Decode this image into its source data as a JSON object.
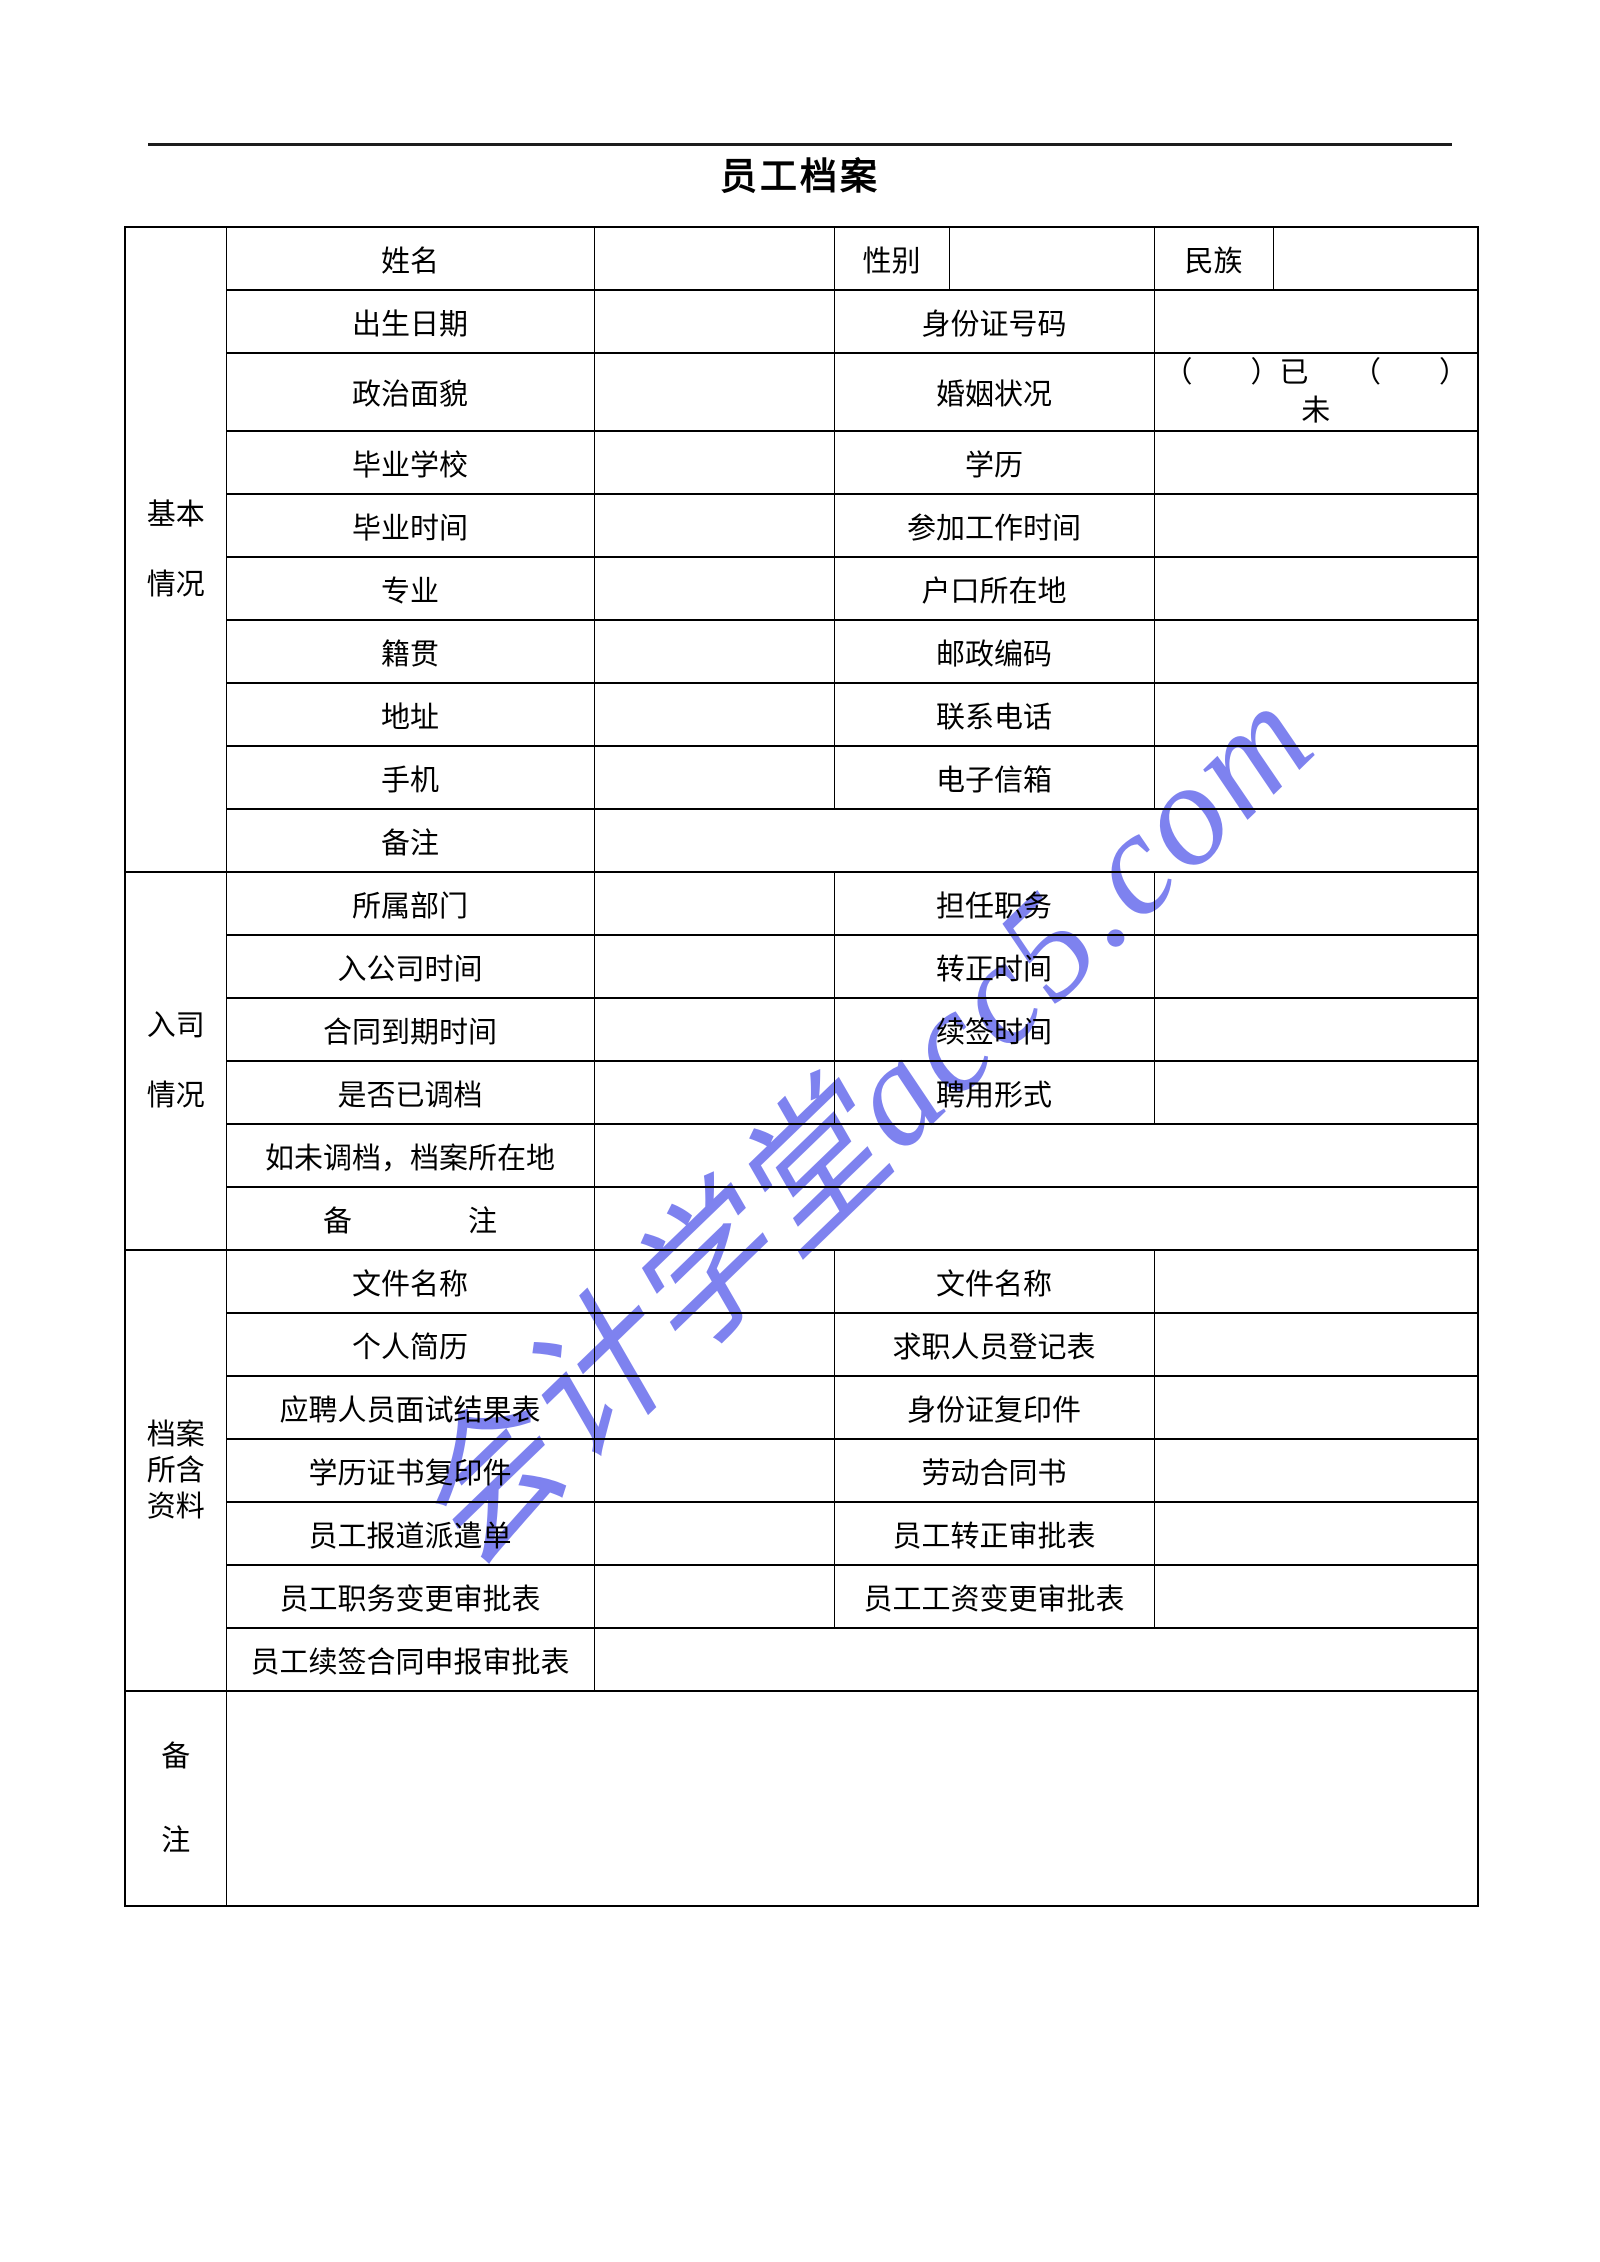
{
  "page": {
    "title": "员工档案"
  },
  "watermark": {
    "text": "会计学堂acc5.com",
    "color": "#7e82ef"
  },
  "table": {
    "sections": [
      {
        "id": "basic-info",
        "label_lines": [
          "基本",
          "情况"
        ],
        "rowspan": 10
      },
      {
        "id": "entry-info",
        "label_lines": [
          "入司",
          "情况"
        ],
        "rowspan": 6
      },
      {
        "id": "archive-contents",
        "label_lines": [
          "档案",
          "所含",
          "资料"
        ],
        "rowspan": 7
      },
      {
        "id": "remarks",
        "label_lines": [
          "备",
          "注"
        ],
        "rowspan": 1
      }
    ],
    "rows": [
      {
        "section_start": 0,
        "cells": [
          {
            "text": "姓名",
            "span": 1
          },
          {
            "text": "",
            "span": 1
          },
          {
            "text": "性别",
            "span": 1
          },
          {
            "text": "",
            "span": 1
          },
          {
            "text": "民族",
            "span": 1
          },
          {
            "text": "",
            "span": 1
          }
        ]
      },
      {
        "cells": [
          {
            "text": "出生日期",
            "span": 1
          },
          {
            "text": "",
            "span": 1
          },
          {
            "text": "身份证号码",
            "span": 2
          },
          {
            "text": "",
            "span": 2
          }
        ]
      },
      {
        "cells": [
          {
            "text": "政治面貌",
            "span": 1
          },
          {
            "text": "",
            "span": 1
          },
          {
            "text": "婚姻状况",
            "span": 2
          },
          {
            "text": "（　　）已　　（　　）未",
            "span": 2,
            "cls": "paren"
          }
        ]
      },
      {
        "cells": [
          {
            "text": "毕业学校",
            "span": 1
          },
          {
            "text": "",
            "span": 1
          },
          {
            "text": "学历",
            "span": 2
          },
          {
            "text": "",
            "span": 2
          }
        ]
      },
      {
        "cells": [
          {
            "text": "毕业时间",
            "span": 1
          },
          {
            "text": "",
            "span": 1
          },
          {
            "text": "参加工作时间",
            "span": 2
          },
          {
            "text": "",
            "span": 2
          }
        ]
      },
      {
        "cells": [
          {
            "text": "专业",
            "span": 1
          },
          {
            "text": "",
            "span": 1
          },
          {
            "text": "户口所在地",
            "span": 2
          },
          {
            "text": "",
            "span": 2
          }
        ]
      },
      {
        "cells": [
          {
            "text": "籍贯",
            "span": 1
          },
          {
            "text": "",
            "span": 1
          },
          {
            "text": "邮政编码",
            "span": 2
          },
          {
            "text": "",
            "span": 2
          }
        ]
      },
      {
        "cells": [
          {
            "text": "地址",
            "span": 1
          },
          {
            "text": "",
            "span": 1
          },
          {
            "text": "联系电话",
            "span": 2
          },
          {
            "text": "",
            "span": 2
          }
        ]
      },
      {
        "cells": [
          {
            "text": "手机",
            "span": 1
          },
          {
            "text": "",
            "span": 1
          },
          {
            "text": "电子信箱",
            "span": 2
          },
          {
            "text": "",
            "span": 2
          }
        ]
      },
      {
        "cells": [
          {
            "text": "备注",
            "span": 1
          },
          {
            "text": "",
            "span": 5
          }
        ]
      },
      {
        "section_start": 1,
        "cells": [
          {
            "text": "所属部门",
            "span": 1
          },
          {
            "text": "",
            "span": 1
          },
          {
            "text": "担任职务",
            "span": 2
          },
          {
            "text": "",
            "span": 2
          }
        ]
      },
      {
        "cells": [
          {
            "text": "入公司时间",
            "span": 1
          },
          {
            "text": "",
            "span": 1
          },
          {
            "text": "转正时间",
            "span": 2
          },
          {
            "text": "",
            "span": 2
          }
        ]
      },
      {
        "cells": [
          {
            "text": "合同到期时间",
            "span": 1
          },
          {
            "text": "",
            "span": 1
          },
          {
            "text": "续签时间",
            "span": 2
          },
          {
            "text": "",
            "span": 2
          }
        ]
      },
      {
        "cells": [
          {
            "text": "是否已调档",
            "span": 1
          },
          {
            "text": "",
            "span": 1
          },
          {
            "text": "聘用形式",
            "span": 2
          },
          {
            "text": "",
            "span": 2
          }
        ]
      },
      {
        "cells": [
          {
            "text": "如未调档，档案所在地",
            "span": 1
          },
          {
            "text": "",
            "span": 5
          }
        ]
      },
      {
        "cells": [
          {
            "text": "备　　　　注",
            "span": 1
          },
          {
            "text": "",
            "span": 5
          }
        ]
      },
      {
        "section_start": 2,
        "cells": [
          {
            "text": "文件名称",
            "span": 1
          },
          {
            "text": "",
            "span": 1
          },
          {
            "text": "文件名称",
            "span": 2
          },
          {
            "text": "",
            "span": 2
          }
        ]
      },
      {
        "cells": [
          {
            "text": "个人简历",
            "span": 1
          },
          {
            "text": "",
            "span": 1
          },
          {
            "text": "求职人员登记表",
            "span": 2
          },
          {
            "text": "",
            "span": 2
          }
        ]
      },
      {
        "cells": [
          {
            "text": "应聘人员面试结果表",
            "span": 1
          },
          {
            "text": "",
            "span": 1
          },
          {
            "text": "身份证复印件",
            "span": 2
          },
          {
            "text": "",
            "span": 2
          }
        ]
      },
      {
        "cells": [
          {
            "text": "学历证书复印件",
            "span": 1
          },
          {
            "text": "",
            "span": 1
          },
          {
            "text": "劳动合同书",
            "span": 2
          },
          {
            "text": "",
            "span": 2
          }
        ]
      },
      {
        "cells": [
          {
            "text": "员工报道派遣单",
            "span": 1
          },
          {
            "text": "",
            "span": 1
          },
          {
            "text": "员工转正审批表",
            "span": 2
          },
          {
            "text": "",
            "span": 2
          }
        ]
      },
      {
        "cells": [
          {
            "text": "员工职务变更审批表",
            "span": 1
          },
          {
            "text": "",
            "span": 1
          },
          {
            "text": "员工工资变更审批表",
            "span": 2
          },
          {
            "text": "",
            "span": 2
          }
        ]
      },
      {
        "cells": [
          {
            "text": "员工续签合同申报审批表",
            "span": 1
          },
          {
            "text": "",
            "span": 5
          }
        ]
      },
      {
        "section_start": 3,
        "tall": true,
        "cells": [
          {
            "text": "",
            "span": 6
          }
        ]
      }
    ]
  }
}
